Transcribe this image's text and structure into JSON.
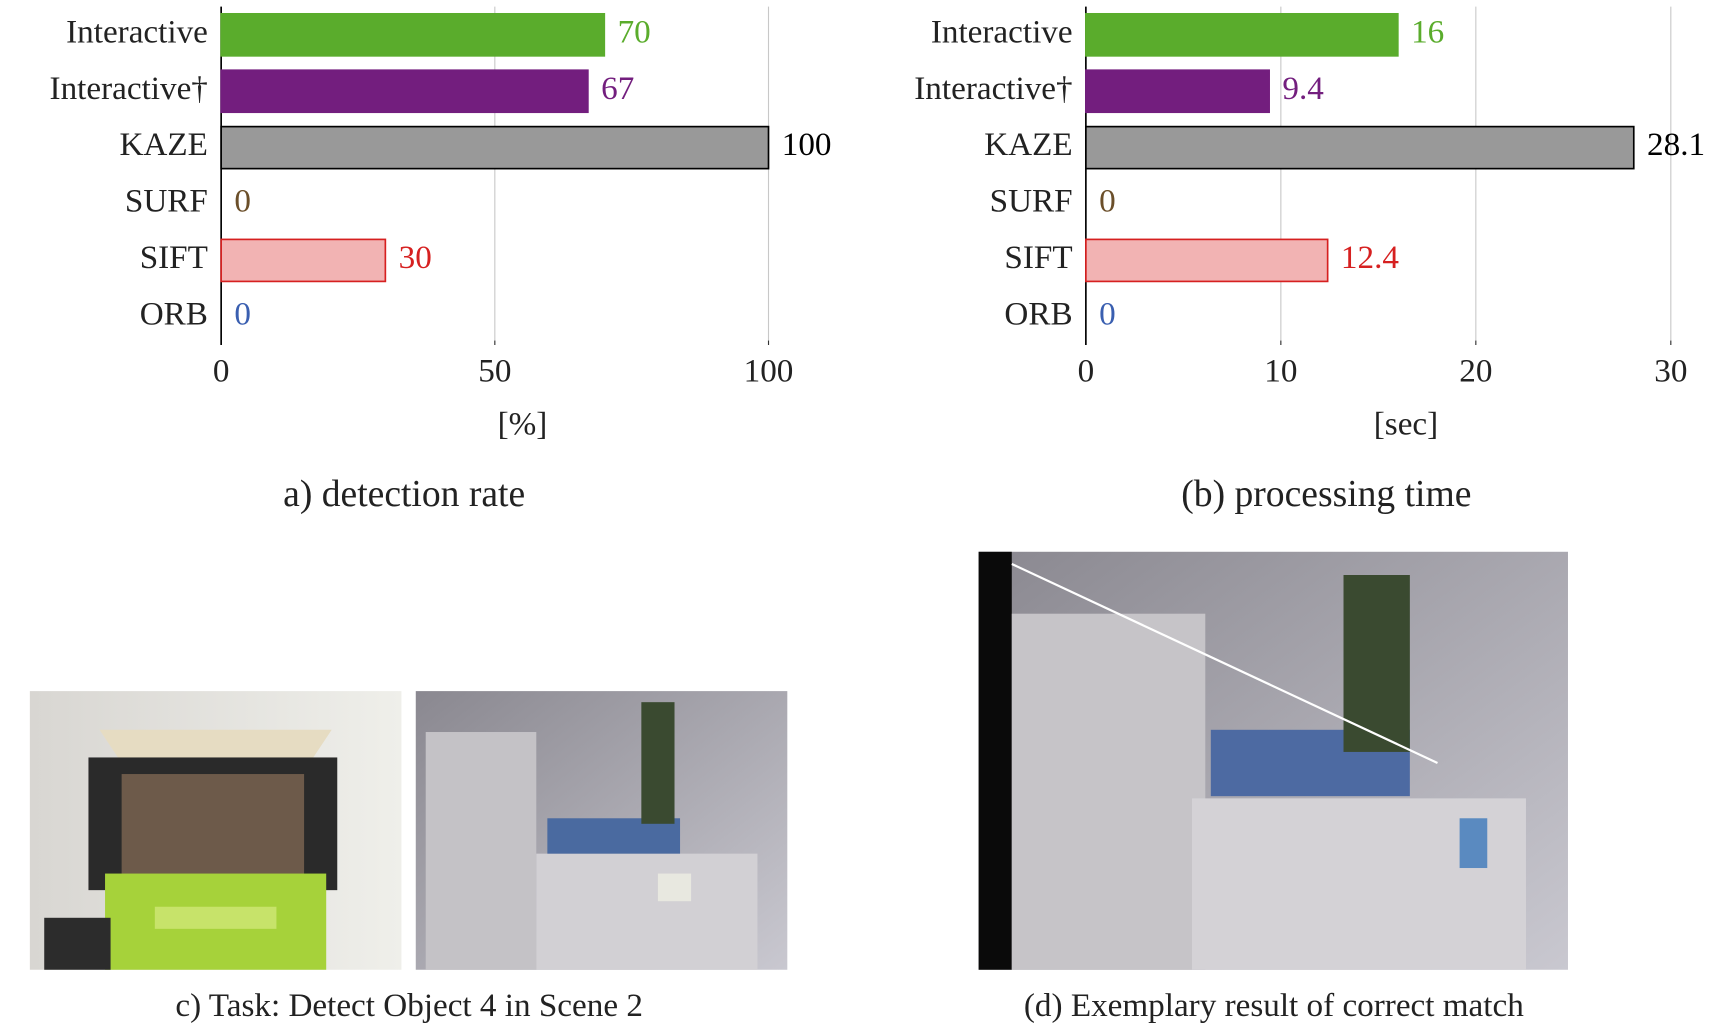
{
  "chart_data": [
    {
      "type": "barh",
      "categories": [
        "Interactive",
        "Interactive†",
        "KAZE",
        "SURF",
        "SIFT",
        "ORB"
      ],
      "values": [
        70,
        67,
        100,
        0,
        30,
        0
      ],
      "colors": [
        "#5aac2c",
        "#731e7e",
        "#999999",
        "#6b4f2a",
        "#f2b3b3",
        "#3a5fb0"
      ],
      "edge_colors": [
        "#5aac2c",
        "#731e7e",
        "#000000",
        "#6b4f2a",
        "#d62020",
        "#3a5fb0"
      ],
      "xlim": [
        0,
        100
      ],
      "xticks": [
        0,
        50,
        100
      ],
      "grid": true,
      "xlabel": "[%]",
      "caption": "a) detection rate"
    },
    {
      "type": "barh",
      "categories": [
        "Interactive",
        "Interactive†",
        "KAZE",
        "SURF",
        "SIFT",
        "ORB"
      ],
      "values": [
        16,
        9.4,
        28.1,
        0,
        12.4,
        0
      ],
      "colors": [
        "#5aac2c",
        "#731e7e",
        "#999999",
        "#6b4f2a",
        "#f2b3b3",
        "#3a5fb0"
      ],
      "edge_colors": [
        "#5aac2c",
        "#731e7e",
        "#000000",
        "#6b4f2a",
        "#d62020",
        "#3a5fb0"
      ],
      "xlim": [
        0,
        30
      ],
      "xticks": [
        0,
        10,
        20,
        30
      ],
      "grid": true,
      "xlabel": "[sec]",
      "caption": "(b) processing time"
    }
  ],
  "panels": [
    {
      "caption": "c) Task: Detect Object 4 in Scene 2"
    },
    {
      "caption": "(d) Exemplary result of correct match"
    }
  ]
}
